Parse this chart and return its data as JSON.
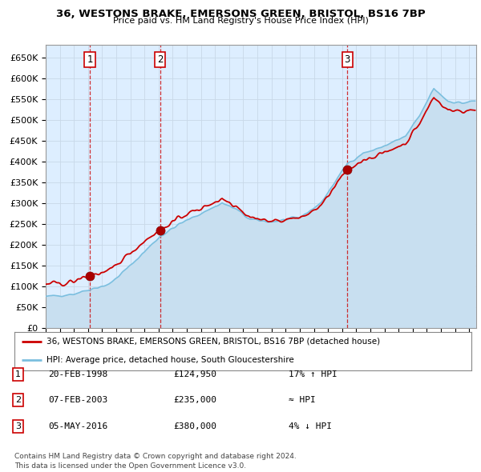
{
  "title": "36, WESTONS BRAKE, EMERSONS GREEN, BRISTOL, BS16 7BP",
  "subtitle": "Price paid vs. HM Land Registry's House Price Index (HPI)",
  "ylim": [
    0,
    680000
  ],
  "yticks": [
    0,
    50000,
    100000,
    150000,
    200000,
    250000,
    300000,
    350000,
    400000,
    450000,
    500000,
    550000,
    600000,
    650000
  ],
  "xlim_start": 1995.0,
  "xlim_end": 2025.5,
  "sale_dates": [
    1998.12,
    2003.1,
    2016.37
  ],
  "sale_prices": [
    124950,
    235000,
    380000
  ],
  "sale_labels": [
    "1",
    "2",
    "3"
  ],
  "hpi_color": "#7bbfdf",
  "hpi_fill_color": "#c8dff0",
  "price_color": "#cc0000",
  "marker_color": "#aa0000",
  "legend_price_label": "36, WESTONS BRAKE, EMERSONS GREEN, BRISTOL, BS16 7BP (detached house)",
  "legend_hpi_label": "HPI: Average price, detached house, South Gloucestershire",
  "table_rows": [
    {
      "num": "1",
      "date": "20-FEB-1998",
      "price": "£124,950",
      "relation": "17% ↑ HPI"
    },
    {
      "num": "2",
      "date": "07-FEB-2003",
      "price": "£235,000",
      "relation": "≈ HPI"
    },
    {
      "num": "3",
      "date": "05-MAY-2016",
      "price": "£380,000",
      "relation": "4% ↓ HPI"
    }
  ],
  "footer": "Contains HM Land Registry data © Crown copyright and database right 2024.\nThis data is licensed under the Open Government Licence v3.0.",
  "bg_color": "#ffffff",
  "grid_color": "#c8d8e8",
  "vline_color": "#cc0000",
  "chart_bg": "#ddeeff"
}
